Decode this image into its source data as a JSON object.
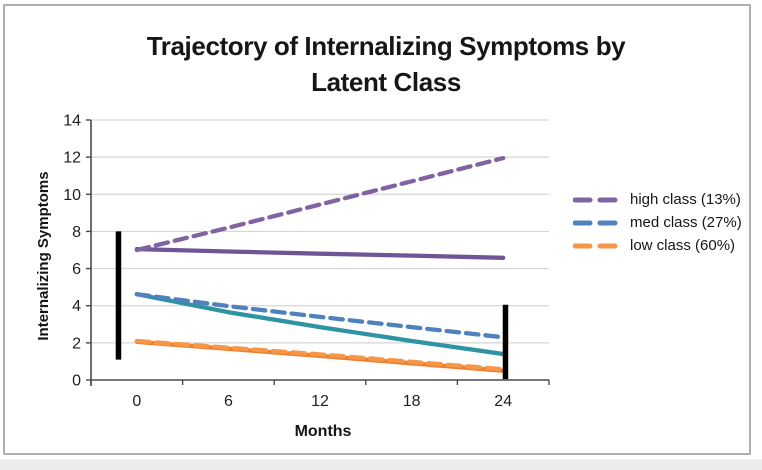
{
  "chart_data": {
    "type": "line",
    "title": "Trajectory of Internalizing Symptoms by Latent Class",
    "title_lines": [
      "Trajectory of Internalizing Symptoms by",
      "Latent Class"
    ],
    "xlabel": "Months",
    "ylabel": "Internalizing Symptoms",
    "x": [
      0,
      6,
      12,
      18,
      24
    ],
    "x_tick_labels": [
      "0",
      "6",
      "12",
      "18",
      "24"
    ],
    "x_axis_range": [
      -3,
      27
    ],
    "ylim": [
      0,
      14
    ],
    "y_ticks": [
      0,
      2,
      4,
      6,
      8,
      10,
      12,
      14
    ],
    "grid": "horizontal",
    "legend_position": "right",
    "series": [
      {
        "id": "high-class-solid",
        "style": "solid",
        "color": "#6f5596",
        "values": [
          7.05,
          6.92,
          6.8,
          6.7,
          6.58
        ]
      },
      {
        "id": "med-class-solid",
        "style": "solid",
        "color": "#2e93a3",
        "values": [
          4.62,
          3.65,
          2.85,
          2.1,
          1.4
        ]
      },
      {
        "id": "low-class-solid",
        "style": "solid",
        "color": "#ed8032",
        "values": [
          2.05,
          1.68,
          1.3,
          0.9,
          0.5
        ]
      },
      {
        "id": "high-class-dashed",
        "style": "dashed",
        "color": "#8064a2",
        "values": [
          7.0,
          8.2,
          9.45,
          10.7,
          11.95
        ]
      },
      {
        "id": "med-class-dashed",
        "style": "dashed",
        "color": "#4f81bd",
        "values": [
          4.62,
          3.98,
          3.4,
          2.85,
          2.3
        ]
      },
      {
        "id": "low-class-dashed",
        "style": "dashed",
        "color": "#f79646",
        "values": [
          2.1,
          1.74,
          1.38,
          0.98,
          0.58
        ]
      }
    ],
    "range_bars": [
      {
        "x": -1.2,
        "y_from": 1.1,
        "y_to": 8.0,
        "color": "#000000"
      },
      {
        "x": 24.15,
        "y_from": 0.05,
        "y_to": 4.05,
        "color": "#000000"
      }
    ],
    "legend": [
      {
        "label": "high class (13%)",
        "color": "#8064a2"
      },
      {
        "label": "med class (27%)",
        "color": "#4f81bd"
      },
      {
        "label": "low class (60%)",
        "color": "#f79646"
      }
    ],
    "colors": {
      "gridline": "#d6d6d6",
      "axis": "#4a4a4a",
      "tick_text": "#1f1f1f",
      "range_bar": "#000000"
    }
  }
}
